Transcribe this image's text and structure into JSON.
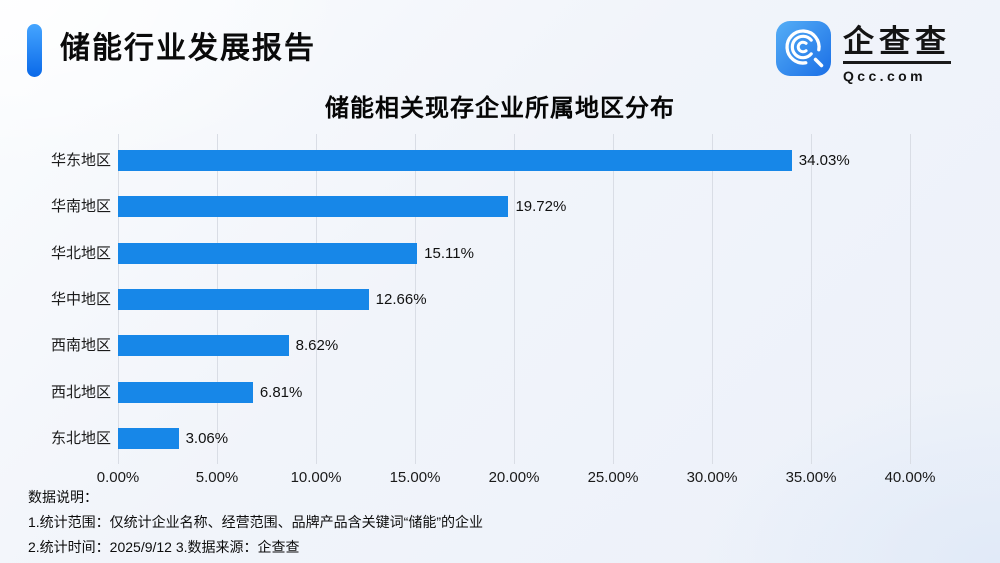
{
  "header": {
    "report_title": "储能行业发展报告",
    "logo_text": "企查查",
    "logo_domain": "Qcc.com"
  },
  "chart_data": {
    "type": "bar",
    "orientation": "horizontal",
    "title": "储能相关现存企业所属地区分布",
    "categories": [
      "华东地区",
      "华南地区",
      "华北地区",
      "华中地区",
      "西南地区",
      "西北地区",
      "东北地区"
    ],
    "values": [
      34.03,
      19.72,
      15.11,
      12.66,
      8.62,
      6.81,
      3.06
    ],
    "value_labels": [
      "34.03%",
      "19.72%",
      "15.11%",
      "12.66%",
      "8.62%",
      "6.81%",
      "3.06%"
    ],
    "xlim": [
      0,
      40
    ],
    "x_tick_values": [
      0,
      5,
      10,
      15,
      20,
      25,
      30,
      35,
      40
    ],
    "x_tick_labels": [
      "0.00%",
      "5.00%",
      "10.00%",
      "15.00%",
      "20.00%",
      "25.00%",
      "30.00%",
      "35.00%",
      "40.00%"
    ],
    "grid": true,
    "legend": false,
    "bar_color": "#1787E8"
  },
  "notes": {
    "heading": "数据说明：",
    "line1": "1.统计范围：仅统计企业名称、经营范围、品牌产品含关键词“储能”的企业",
    "line2": "2.统计时间：2025/9/12  3.数据来源：企查查"
  },
  "colors": {
    "bar": "#1787E8",
    "accent_top": "#45A5FF",
    "accent_bottom": "#0A69E9",
    "gridline": "#D9DDE5",
    "logo_gradient_top": "#55AEF6",
    "logo_gradient_bottom": "#1B6FE6"
  }
}
